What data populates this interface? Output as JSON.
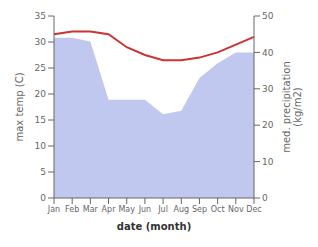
{
  "chart_data": {
    "type": "line",
    "categories": [
      "Jan",
      "Feb",
      "Mar",
      "Apr",
      "May",
      "Jun",
      "Jul",
      "Aug",
      "Sep",
      "Oct",
      "Nov",
      "Dec"
    ],
    "series": [
      {
        "type": "area",
        "color": "#c0c8f0",
        "axis": "y2",
        "values": [
          44,
          44,
          43,
          27,
          27,
          27,
          23,
          24,
          33,
          37,
          40,
          40
        ]
      },
      {
        "type": "line",
        "color": "#cc3333",
        "values": [
          31.5,
          32.0,
          32.0,
          31.5,
          29.0,
          27.5,
          26.5,
          26.5,
          27.0,
          28.0,
          29.5,
          31.0
        ]
      }
    ],
    "xlabel": "date (month)",
    "ylabel": "max temp (C)",
    "y2label": "med. precipitation\n(kg/m2)",
    "ylim": [
      0,
      35
    ],
    "yticks": [
      0,
      5,
      10,
      15,
      20,
      25,
      30,
      35
    ],
    "y2lim": [
      0,
      50
    ],
    "y2ticks": [
      0,
      10,
      20,
      30,
      40,
      50
    ],
    "grid": false
  }
}
